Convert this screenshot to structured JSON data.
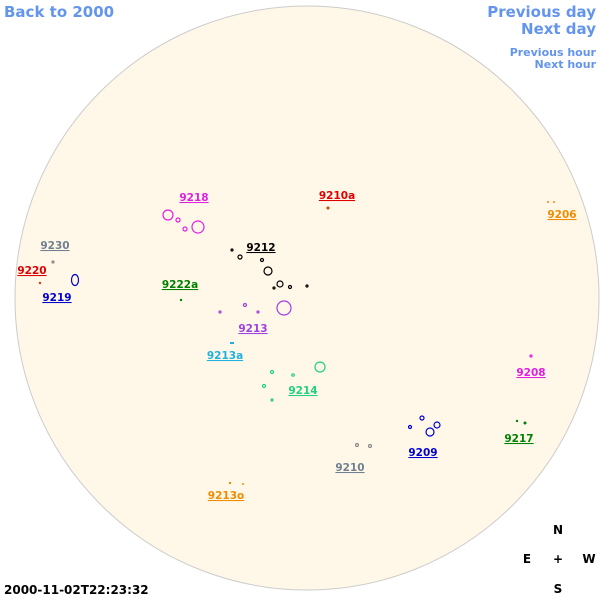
{
  "navigation": {
    "back": "Back to 2000",
    "previous_day": "Previous day",
    "next_day": "Next day",
    "previous_hour": "Previous hour",
    "next_hour": "Next hour"
  },
  "regions": [
    "9218",
    "9210a",
    "9206",
    "9230",
    "9212",
    "9220",
    "9219",
    "9222a",
    "9213",
    "9213a",
    "9208",
    "9214",
    "9217",
    "9209",
    "9210",
    "9213o"
  ],
  "compass": {
    "north": "N",
    "east": "E",
    "center": "+",
    "west": "W",
    "south": "S"
  },
  "timestamp": "2000-11-02T22:23:32"
}
